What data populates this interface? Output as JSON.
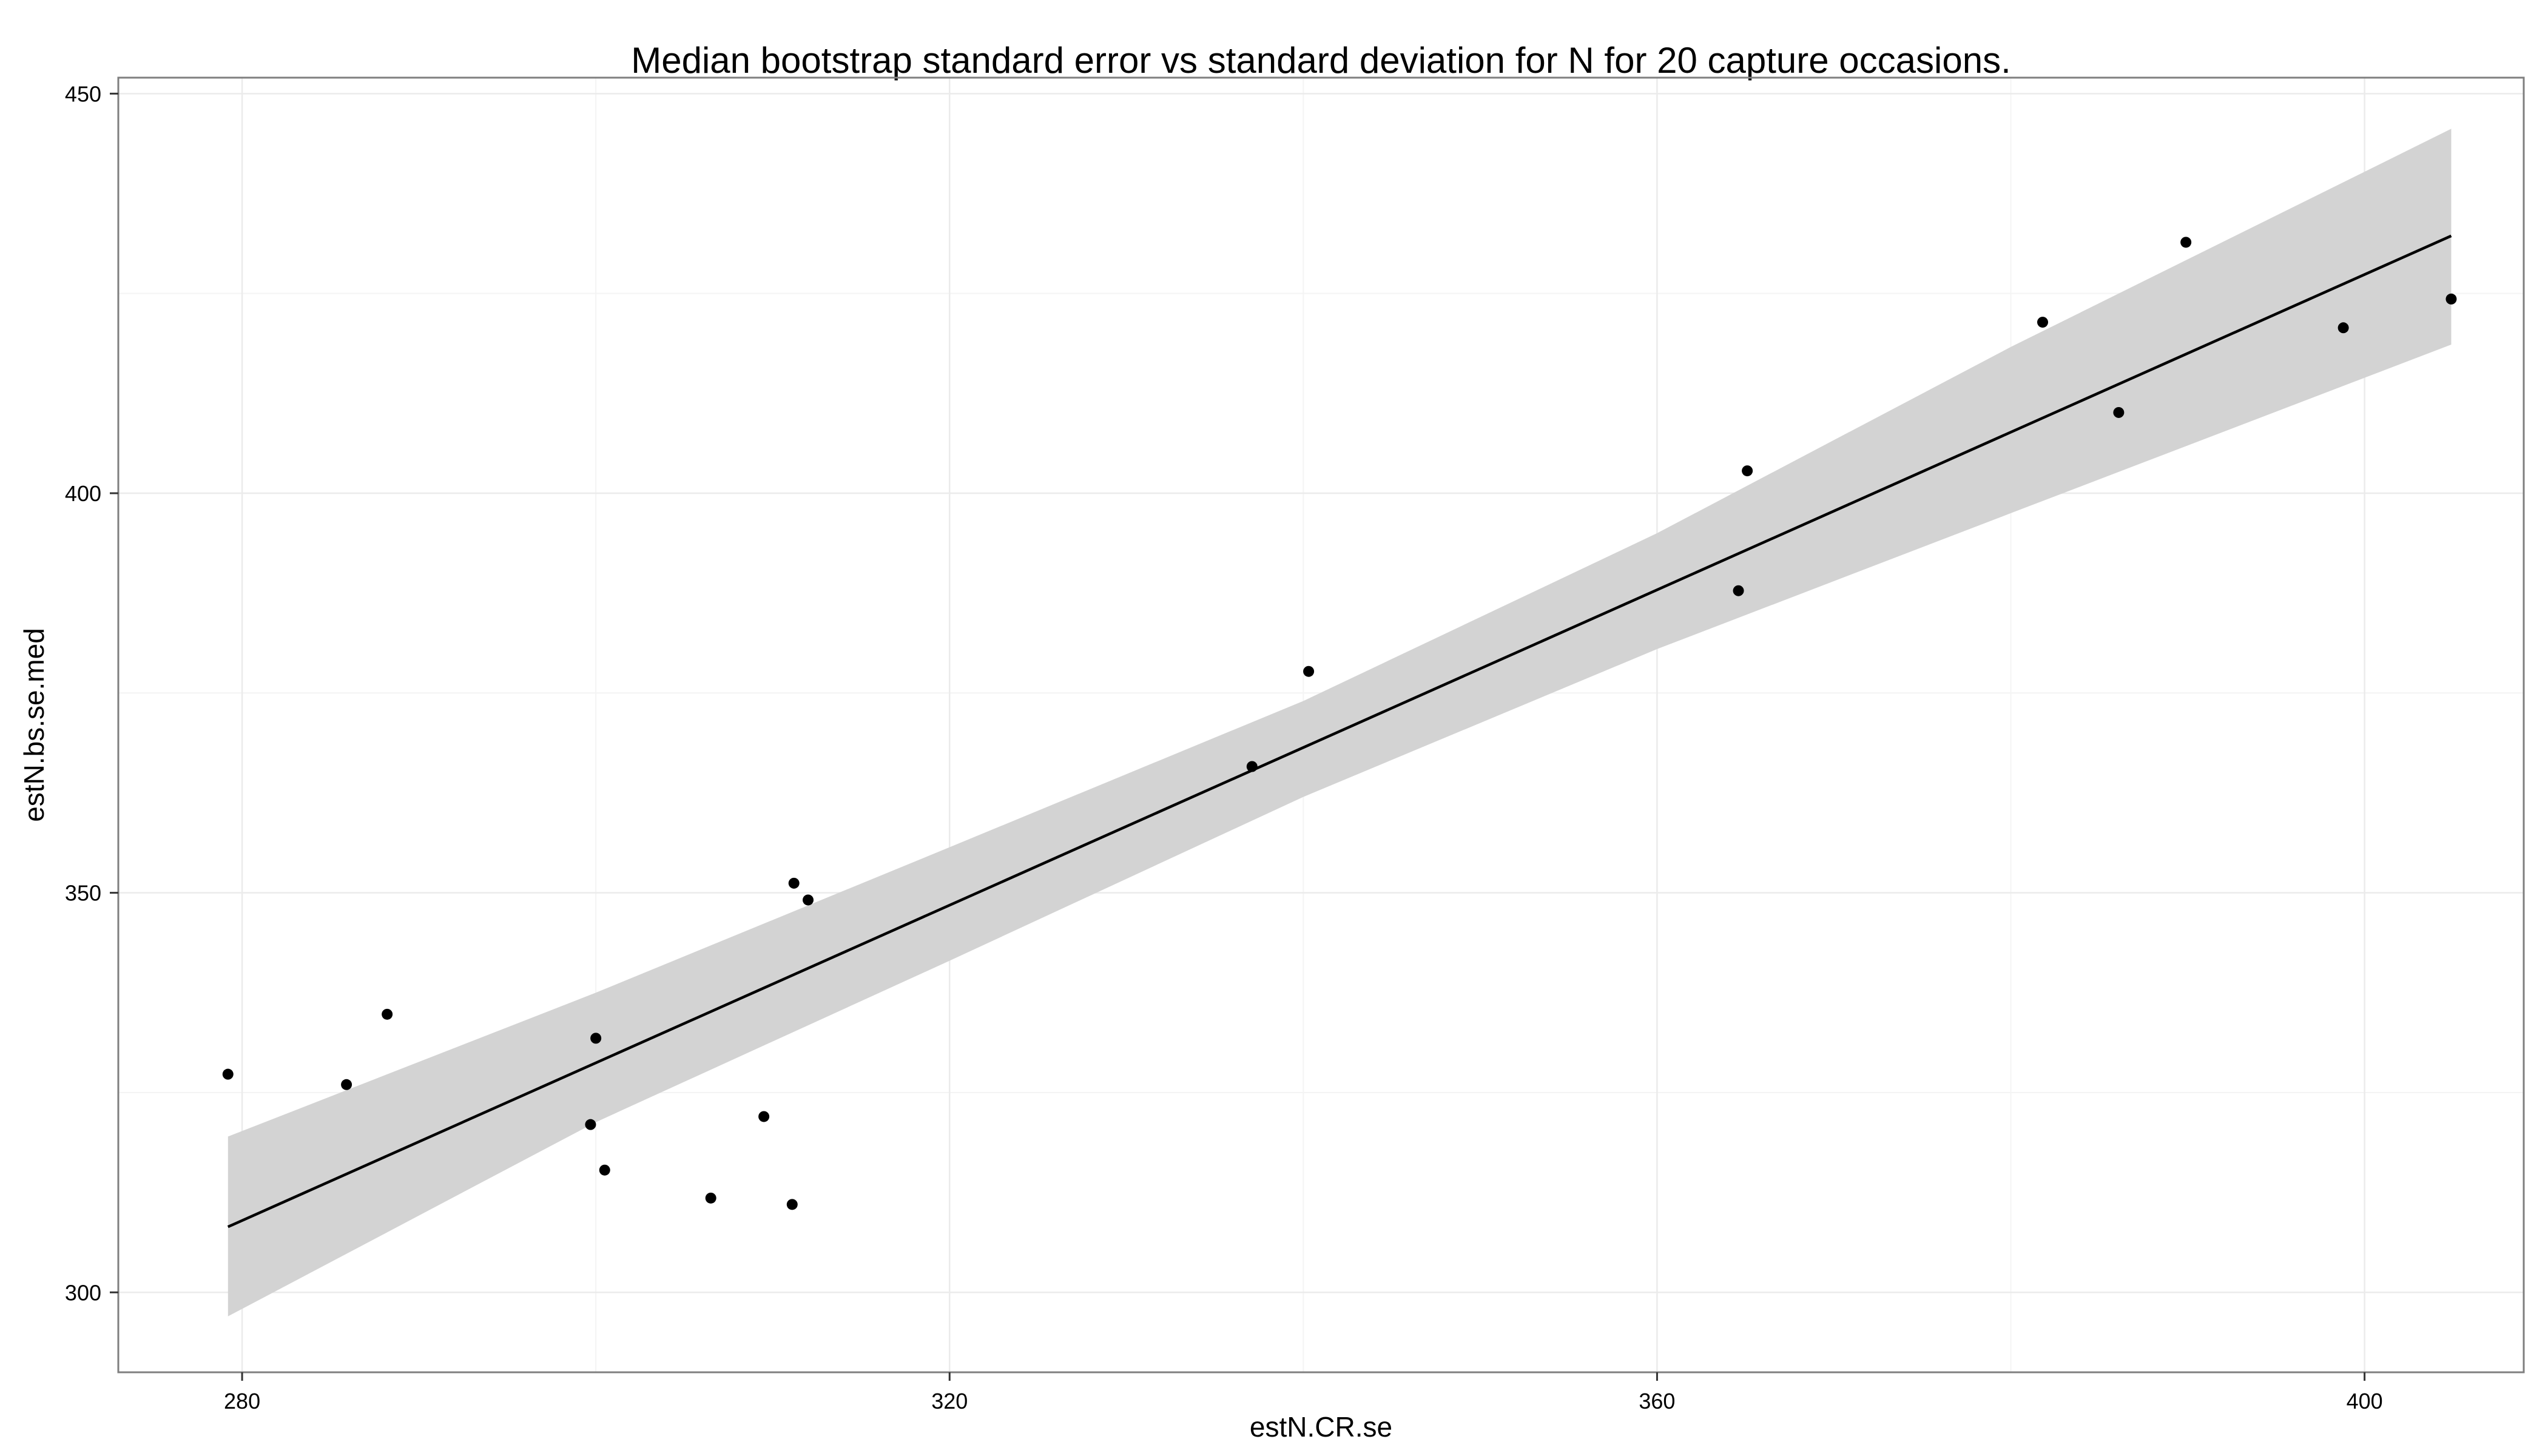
{
  "chart_data": {
    "type": "scatter",
    "title": "Median bootstrap standard error vs standard deviation for N for 20 capture occasions.",
    "xlabel": "estN.CR.se",
    "ylabel": "estN.bs.se.med",
    "xlim": [
      273,
      409
    ],
    "ylim": [
      290,
      452
    ],
    "x_ticks": [
      280,
      320,
      360,
      400
    ],
    "x_tick_labels": [
      "280",
      "320",
      "360",
      "400"
    ],
    "y_ticks": [
      300,
      350,
      400,
      450
    ],
    "y_tick_labels": [
      "300",
      "350",
      "400",
      "450"
    ],
    "grid": true,
    "legend": "none",
    "series": [
      {
        "points": [
          {
            "x": 279.2,
            "y": 327.3
          },
          {
            "x": 285.9,
            "y": 326.0
          },
          {
            "x": 288.2,
            "y": 334.8
          },
          {
            "x": 299.7,
            "y": 321.0
          },
          {
            "x": 300.0,
            "y": 331.8
          },
          {
            "x": 300.5,
            "y": 315.3
          },
          {
            "x": 306.5,
            "y": 311.8
          },
          {
            "x": 309.5,
            "y": 322.0
          },
          {
            "x": 311.1,
            "y": 311.0
          },
          {
            "x": 311.2,
            "y": 351.2
          },
          {
            "x": 312.0,
            "y": 349.1
          },
          {
            "x": 337.1,
            "y": 365.8
          },
          {
            "x": 340.3,
            "y": 377.7
          },
          {
            "x": 364.6,
            "y": 387.8
          },
          {
            "x": 365.1,
            "y": 402.8
          },
          {
            "x": 381.8,
            "y": 421.4
          },
          {
            "x": 386.1,
            "y": 410.1
          },
          {
            "x": 389.9,
            "y": 431.4
          },
          {
            "x": 398.8,
            "y": 420.7
          },
          {
            "x": 404.9,
            "y": 424.3
          }
        ]
      }
    ],
    "fit_line": {
      "method": "linear",
      "x": [
        279.2,
        404.9
      ],
      "y": [
        308.2,
        432.2
      ]
    },
    "confidence_band": {
      "x": [
        279.2,
        300.0,
        320.0,
        340.0,
        360.0,
        380.0,
        404.9
      ],
      "lower": [
        297.0,
        321.3,
        341.5,
        362.0,
        380.5,
        397.5,
        418.6
      ],
      "upper": [
        319.5,
        337.5,
        355.7,
        374.0,
        395.0,
        418.3,
        445.6
      ]
    },
    "colors": {
      "points": "#000000",
      "fit_line": "#000000",
      "band": "#d3d3d3",
      "grid": "#ebebeb",
      "panel_border": "#7f7f7f"
    }
  }
}
